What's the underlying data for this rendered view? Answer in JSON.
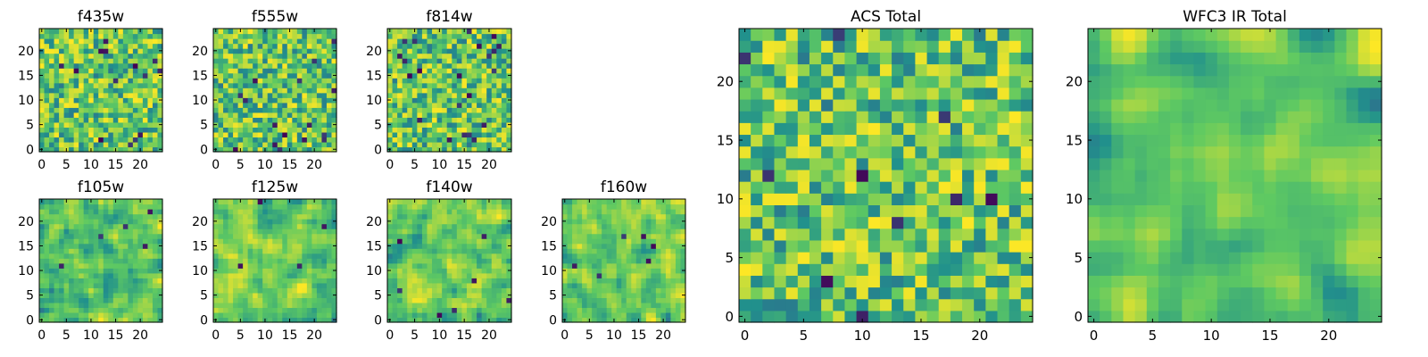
{
  "chart_data": [
    {
      "type": "heatmap",
      "title": "f435w",
      "xticks": [
        0,
        5,
        10,
        15,
        20
      ],
      "yticks": [
        0,
        5,
        10,
        15,
        20
      ],
      "xlim": [
        0,
        24
      ],
      "ylim": [
        0,
        24
      ],
      "grid": false,
      "legend": "none",
      "colormap": "viridis",
      "seed": 11,
      "smooth": 0,
      "dark_spots": 14
    },
    {
      "type": "heatmap",
      "title": "f555w",
      "xticks": [
        0,
        5,
        10,
        15,
        20
      ],
      "yticks": [
        0,
        5,
        10,
        15,
        20
      ],
      "xlim": [
        0,
        24
      ],
      "ylim": [
        0,
        24
      ],
      "grid": false,
      "legend": "none",
      "colormap": "viridis",
      "seed": 23,
      "smooth": 0,
      "dark_spots": 16
    },
    {
      "type": "heatmap",
      "title": "f814w",
      "xticks": [
        0,
        5,
        10,
        15,
        20
      ],
      "yticks": [
        0,
        5,
        10,
        15,
        20
      ],
      "xlim": [
        0,
        24
      ],
      "ylim": [
        0,
        24
      ],
      "grid": false,
      "legend": "none",
      "colormap": "viridis",
      "seed": 37,
      "smooth": 0,
      "dark_spots": 22
    },
    {
      "type": "heatmap",
      "title": "f105w",
      "xticks": [
        0,
        5,
        10,
        15,
        20
      ],
      "yticks": [
        0,
        5,
        10,
        15,
        20
      ],
      "xlim": [
        0,
        24
      ],
      "ylim": [
        0,
        24
      ],
      "grid": false,
      "legend": "none",
      "colormap": "viridis",
      "seed": 41,
      "smooth": 1,
      "dark_spots": 5
    },
    {
      "type": "heatmap",
      "title": "f125w",
      "xticks": [
        0,
        5,
        10,
        15,
        20
      ],
      "yticks": [
        0,
        5,
        10,
        15,
        20
      ],
      "xlim": [
        0,
        24
      ],
      "ylim": [
        0,
        24
      ],
      "grid": false,
      "legend": "none",
      "colormap": "viridis",
      "seed": 53,
      "smooth": 1,
      "dark_spots": 4
    },
    {
      "type": "heatmap",
      "title": "f140w",
      "xticks": [
        0,
        5,
        10,
        15,
        20
      ],
      "yticks": [
        0,
        5,
        10,
        15,
        20
      ],
      "xlim": [
        0,
        24
      ],
      "ylim": [
        0,
        24
      ],
      "grid": false,
      "legend": "none",
      "colormap": "viridis",
      "seed": 67,
      "smooth": 1,
      "dark_spots": 7
    },
    {
      "type": "heatmap",
      "title": "f160w",
      "xticks": [
        0,
        5,
        10,
        15,
        20
      ],
      "yticks": [
        0,
        5,
        10,
        15,
        20
      ],
      "xlim": [
        0,
        24
      ],
      "ylim": [
        0,
        24
      ],
      "grid": false,
      "legend": "none",
      "colormap": "viridis",
      "seed": 79,
      "smooth": 1,
      "dark_spots": 6
    },
    {
      "type": "heatmap",
      "title": "ACS Total",
      "xticks": [
        0,
        5,
        10,
        15,
        20
      ],
      "yticks": [
        0,
        5,
        10,
        15,
        20
      ],
      "xlim": [
        0,
        24
      ],
      "ylim": [
        0,
        24
      ],
      "grid": false,
      "legend": "none",
      "colormap": "viridis",
      "seed": 97,
      "smooth": 0,
      "dark_spots": 10
    },
    {
      "type": "heatmap",
      "title": "WFC3 IR Total",
      "xticks": [
        0,
        5,
        10,
        15,
        20
      ],
      "yticks": [
        0,
        5,
        10,
        15,
        20
      ],
      "xlim": [
        0,
        24
      ],
      "ylim": [
        0,
        24
      ],
      "grid": false,
      "legend": "none",
      "colormap": "viridis",
      "seed": 113,
      "smooth": 2,
      "dark_spots": 0
    }
  ],
  "colors": {
    "viridis_dark": "#440154",
    "viridis_blue": "#31688e",
    "viridis_teal": "#21918c",
    "viridis_green": "#5ec962",
    "viridis_yellow": "#fde725",
    "axes_edge": "#000000",
    "background": "#ffffff"
  }
}
